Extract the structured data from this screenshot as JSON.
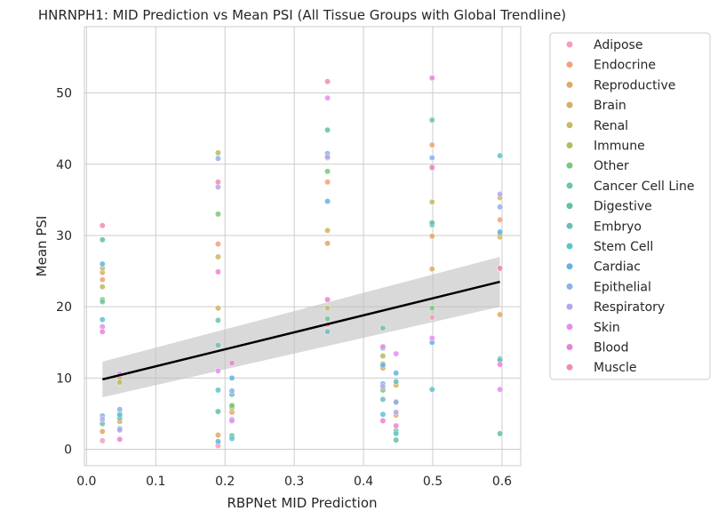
{
  "chart_data": {
    "type": "scatter",
    "title": "HNRNPH1: MID Prediction vs Mean PSI (All Tissue Groups with Global Trendline)",
    "xlabel": "RBPNet MID Prediction",
    "ylabel": "Mean PSI",
    "xlim": [
      -0.003,
      0.627
    ],
    "ylim": [
      -2.3,
      59.3
    ],
    "xticks": [
      0.0,
      0.1,
      0.2,
      0.3,
      0.4,
      0.5,
      0.6
    ],
    "xtick_labels": [
      "0.0",
      "0.1",
      "0.2",
      "0.3",
      "0.4",
      "0.5",
      "0.6"
    ],
    "yticks": [
      0,
      10,
      20,
      30,
      40,
      50
    ],
    "ytick_labels": [
      "0",
      "10",
      "20",
      "30",
      "40",
      "50"
    ],
    "grid": true,
    "legend_position": "outside-right",
    "trendline": {
      "x": [
        0.023,
        0.597
      ],
      "y": [
        9.8,
        23.5
      ],
      "band_low": [
        7.3,
        20.0
      ],
      "band_high": [
        12.3,
        27.0
      ],
      "color": "#000000"
    },
    "series": [
      {
        "name": "Adipose",
        "color": "#f0a0b8",
        "x": [
          0.023,
          0.19,
          0.348,
          0.499,
          0.597
        ],
        "y": [
          1.2,
          0.5,
          17.5,
          18.5,
          25.3
        ]
      },
      {
        "name": "Endocrine",
        "color": "#f2a07a",
        "x": [
          0.023,
          0.19,
          0.348,
          0.499,
          0.597
        ],
        "y": [
          23.8,
          28.8,
          37.5,
          42.7,
          32.2
        ]
      },
      {
        "name": "Reproductive",
        "color": "#e0a860",
        "x": [
          0.023,
          0.048,
          0.19,
          0.21,
          0.348,
          0.428,
          0.447,
          0.499,
          0.597
        ],
        "y": [
          2.5,
          3.9,
          2.0,
          5.2,
          28.9,
          11.4,
          4.8,
          29.9,
          18.9
        ]
      },
      {
        "name": "Brain",
        "color": "#d4b060",
        "x": [
          0.023,
          0.048,
          0.19,
          0.21,
          0.348,
          0.428,
          0.447,
          0.499,
          0.597
        ],
        "y": [
          24.8,
          10.0,
          19.8,
          5.8,
          30.7,
          12.0,
          9.0,
          25.3,
          29.8
        ]
      },
      {
        "name": "Renal",
        "color": "#c8b86a",
        "x": [
          0.023,
          0.19,
          0.348,
          0.499,
          0.597
        ],
        "y": [
          25.4,
          27.0,
          19.8,
          34.7,
          35.3
        ]
      },
      {
        "name": "Immune",
        "color": "#b4bc60",
        "x": [
          0.023,
          0.048,
          0.19,
          0.21,
          0.348,
          0.428,
          0.447,
          0.597
        ],
        "y": [
          22.8,
          9.4,
          41.6,
          6.2,
          40.9,
          13.1,
          6.7,
          30.2
        ]
      },
      {
        "name": "Other",
        "color": "#78c878",
        "x": [
          0.023,
          0.19,
          0.21,
          0.348,
          0.428,
          0.499
        ],
        "y": [
          21.0,
          33.0,
          6.1,
          39.0,
          8.3,
          19.8
        ]
      },
      {
        "name": "Cancer Cell Line",
        "color": "#6ec4a0",
        "x": [
          0.023,
          0.19,
          0.348,
          0.428,
          0.447,
          0.499,
          0.597
        ],
        "y": [
          20.7,
          18.1,
          18.3,
          17.0,
          2.6,
          46.2,
          12.7
        ]
      },
      {
        "name": "Digestive",
        "color": "#60c0a8",
        "x": [
          0.023,
          0.048,
          0.19,
          0.21,
          0.348,
          0.428,
          0.447,
          0.499,
          0.597
        ],
        "y": [
          29.4,
          4.4,
          5.3,
          1.9,
          44.8,
          14.2,
          1.3,
          31.5,
          2.2
        ]
      },
      {
        "name": "Embryo",
        "color": "#6cbcb8",
        "x": [
          0.023,
          0.048,
          0.19,
          0.21,
          0.348,
          0.428,
          0.447,
          0.499,
          0.597
        ],
        "y": [
          3.6,
          5.0,
          14.6,
          7.7,
          16.5,
          7.0,
          9.5,
          31.8,
          12.5
        ]
      },
      {
        "name": "Stem Cell",
        "color": "#5cc4cc",
        "x": [
          0.023,
          0.048,
          0.19,
          0.21,
          0.428,
          0.447,
          0.499,
          0.597
        ],
        "y": [
          18.2,
          4.8,
          8.3,
          1.5,
          4.9,
          2.2,
          8.4,
          41.2
        ]
      },
      {
        "name": "Cardiac",
        "color": "#60b4e4",
        "x": [
          0.023,
          0.048,
          0.19,
          0.21,
          0.348,
          0.428,
          0.447,
          0.499,
          0.597
        ],
        "y": [
          26.0,
          2.9,
          1.1,
          10.0,
          34.8,
          11.8,
          10.7,
          15.0,
          30.5
        ]
      },
      {
        "name": "Epithelial",
        "color": "#8cb0ec",
        "x": [
          0.023,
          0.048,
          0.19,
          0.21,
          0.348,
          0.428,
          0.447,
          0.499,
          0.597
        ],
        "y": [
          4.7,
          5.6,
          40.8,
          8.2,
          41.5,
          9.2,
          6.6,
          40.9,
          34.0
        ]
      },
      {
        "name": "Respiratory",
        "color": "#b0a8ec",
        "x": [
          0.023,
          0.048,
          0.19,
          0.21,
          0.348,
          0.428,
          0.447,
          0.499,
          0.597
        ],
        "y": [
          4.2,
          2.7,
          36.8,
          4.2,
          41.0,
          8.8,
          5.2,
          39.7,
          35.8
        ]
      },
      {
        "name": "Skin",
        "color": "#e88cf0",
        "x": [
          0.023,
          0.048,
          0.19,
          0.21,
          0.348,
          0.428,
          0.447,
          0.499,
          0.597
        ],
        "y": [
          17.2,
          10.6,
          11.0,
          4.0,
          49.3,
          14.4,
          13.4,
          15.6,
          8.4
        ]
      },
      {
        "name": "Blood",
        "color": "#f080d4",
        "x": [
          0.023,
          0.048,
          0.19,
          0.21,
          0.348,
          0.428,
          0.447,
          0.499,
          0.597
        ],
        "y": [
          16.5,
          1.4,
          24.9,
          12.1,
          21.0,
          4.0,
          3.3,
          52.1,
          11.9
        ]
      },
      {
        "name": "Muscle",
        "color": "#f08cb0",
        "x": [
          0.023,
          0.19,
          0.348,
          0.499,
          0.597
        ],
        "y": [
          31.4,
          37.5,
          51.6,
          39.5,
          25.4
        ]
      }
    ]
  },
  "legend": {
    "items": [
      {
        "label": "Adipose",
        "color": "#f0a0b8"
      },
      {
        "label": "Endocrine",
        "color": "#f2a07a"
      },
      {
        "label": "Reproductive",
        "color": "#e0a860"
      },
      {
        "label": "Brain",
        "color": "#d4b060"
      },
      {
        "label": "Renal",
        "color": "#c8b86a"
      },
      {
        "label": "Immune",
        "color": "#b4bc60"
      },
      {
        "label": "Other",
        "color": "#78c878"
      },
      {
        "label": "Cancer Cell Line",
        "color": "#6ec4a0"
      },
      {
        "label": "Digestive",
        "color": "#60c0a8"
      },
      {
        "label": "Embryo",
        "color": "#6cbcb8"
      },
      {
        "label": "Stem Cell",
        "color": "#5cc4cc"
      },
      {
        "label": "Cardiac",
        "color": "#60b4e4"
      },
      {
        "label": "Epithelial",
        "color": "#8cb0ec"
      },
      {
        "label": "Respiratory",
        "color": "#b0a8ec"
      },
      {
        "label": "Skin",
        "color": "#e88cf0"
      },
      {
        "label": "Blood",
        "color": "#f080d4"
      },
      {
        "label": "Muscle",
        "color": "#f08cb0"
      }
    ]
  }
}
